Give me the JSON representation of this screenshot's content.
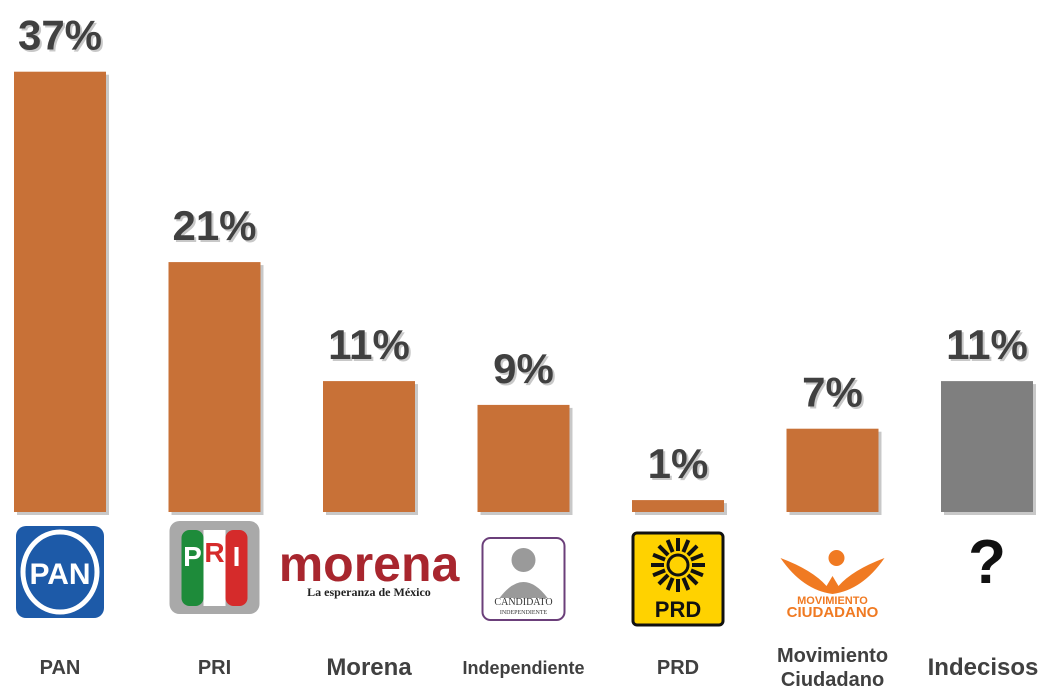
{
  "chart_data": {
    "type": "bar",
    "categories": [
      "PAN",
      "PRI",
      "Morena",
      "Independiente",
      "PRD",
      "Movimiento Ciudadano",
      "Indecisos"
    ],
    "values": [
      37,
      21,
      11,
      9,
      1,
      7,
      11
    ],
    "value_labels": [
      "37%",
      "21%",
      "11%",
      "9%",
      "1%",
      "7%",
      "11%"
    ],
    "colors": [
      "#C87137",
      "#C87137",
      "#C87137",
      "#C87137",
      "#C87137",
      "#C87137",
      "#7F7F7F"
    ],
    "logos": [
      [
        "PAN"
      ],
      [
        "P",
        "R",
        "I"
      ],
      [
        "morena",
        "La esperanza de México"
      ],
      [
        "CANDIDATO",
        "INDEPENDIENTE"
      ],
      [
        "PRD"
      ],
      [
        "MOVIMIENTO",
        "CIUDADANO"
      ],
      [
        "?"
      ]
    ]
  }
}
